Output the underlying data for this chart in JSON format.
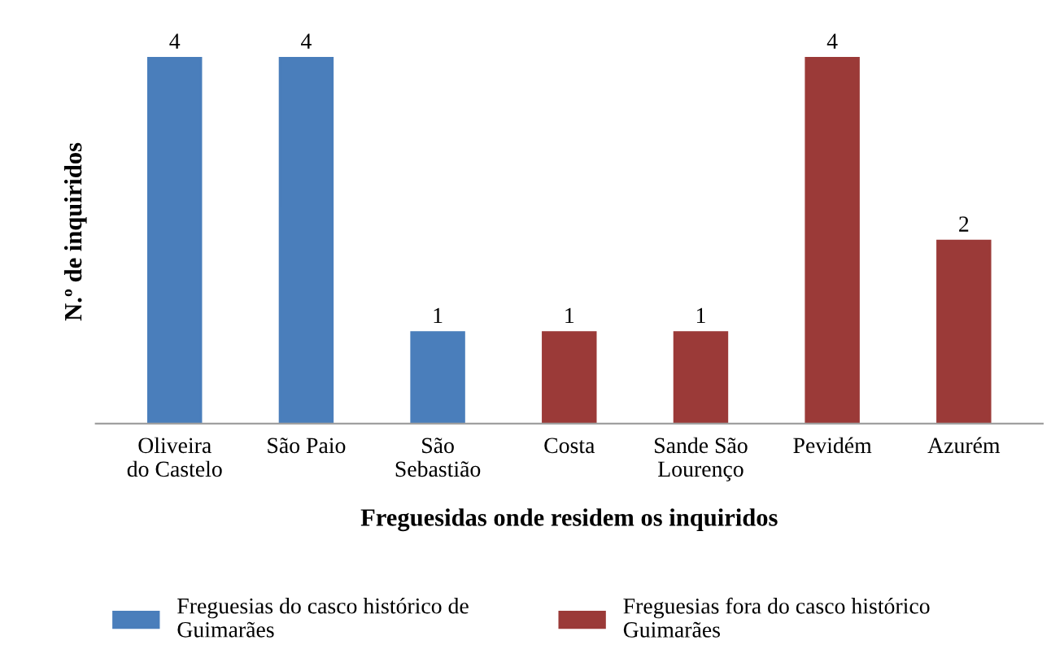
{
  "chart_data": {
    "type": "bar",
    "categories": [
      "Oliveira\ndo Castelo",
      "São Paio",
      "São\nSebastião",
      "Costa",
      "Sande São\nLourenço",
      "Pevidém",
      "Azurém"
    ],
    "series": [
      {
        "name": "Freguesias do casco histórico de\nGuimarães",
        "color": "#4a7ebb",
        "values": [
          4,
          4,
          1,
          null,
          null,
          null,
          null
        ]
      },
      {
        "name": "Freguesias fora do casco histórico\nGuimarães",
        "color": "#9b3a38",
        "values": [
          null,
          null,
          null,
          1,
          1,
          4,
          2
        ]
      }
    ],
    "xlabel": "Freguesidas onde residem os inquiridos",
    "ylabel": "N.º de inquiridos",
    "data_labels": true,
    "tick_labels": "x",
    "grid": false,
    "legend": "bottom"
  }
}
